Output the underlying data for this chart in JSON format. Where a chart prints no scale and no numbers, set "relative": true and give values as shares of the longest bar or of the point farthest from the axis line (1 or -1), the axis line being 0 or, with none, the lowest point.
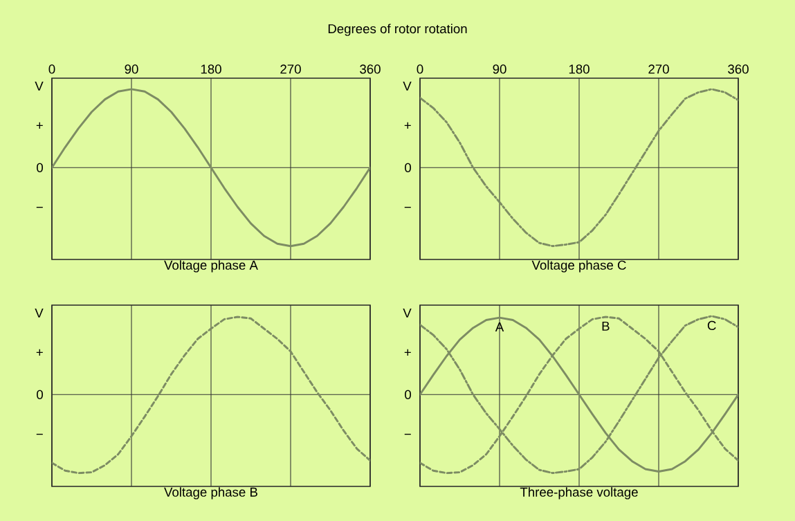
{
  "chart_data": [
    {
      "type": "line",
      "relative": true,
      "title": "Voltage phase A",
      "xlabel": "Degrees of rotor rotation",
      "annotations": [
        "V",
        "+",
        "0",
        "−"
      ],
      "x": [
        0,
        15,
        30,
        45,
        60,
        75,
        90,
        105,
        120,
        135,
        150,
        165,
        180,
        195,
        210,
        225,
        240,
        255,
        270,
        285,
        300,
        315,
        330,
        345,
        360
      ],
      "xlim": [
        0,
        360
      ],
      "xticks": [
        0,
        90,
        180,
        270,
        360
      ],
      "grid": "x",
      "ref_lines": [
        {
          "axis": "y",
          "value": 0
        }
      ],
      "series": [
        {
          "color": "#7d8c63",
          "line_style": "solid",
          "values": [
            0,
            0.26,
            0.5,
            0.71,
            0.87,
            0.97,
            1,
            0.97,
            0.87,
            0.71,
            0.5,
            0.26,
            0,
            -0.26,
            -0.5,
            -0.71,
            -0.87,
            -0.97,
            -1,
            -0.97,
            -0.87,
            -0.71,
            -0.5,
            -0.26,
            0
          ]
        }
      ]
    },
    {
      "type": "line",
      "relative": true,
      "title": "Voltage phase C",
      "annotations": [
        "V",
        "+",
        "0",
        "−"
      ],
      "x": [
        0,
        15,
        30,
        45,
        60,
        75,
        90,
        105,
        120,
        135,
        150,
        165,
        180,
        195,
        210,
        225,
        240,
        255,
        270,
        285,
        300,
        315,
        330,
        345,
        360
      ],
      "xlim": [
        0,
        360
      ],
      "xticks": [
        0,
        90,
        180,
        270,
        360
      ],
      "grid": "x",
      "ref_lines": [
        {
          "axis": "y",
          "value": 0
        }
      ],
      "series": [
        {
          "color": "#7d8c63",
          "line_style": "dashdot",
          "values": [
            0.89,
            0.76,
            0.58,
            0.32,
            0,
            -0.24,
            -0.44,
            -0.65,
            -0.83,
            -0.96,
            -1,
            -0.98,
            -0.95,
            -0.8,
            -0.6,
            -0.34,
            -0.07,
            0.2,
            0.47,
            0.68,
            0.88,
            0.96,
            1,
            0.96,
            0.86
          ]
        }
      ]
    },
    {
      "type": "line",
      "relative": true,
      "title": "Voltage phase B",
      "annotations": [
        "V",
        "+",
        "0",
        "−"
      ],
      "x": [
        0,
        15,
        30,
        45,
        60,
        75,
        90,
        105,
        120,
        135,
        150,
        165,
        180,
        195,
        210,
        225,
        240,
        255,
        270,
        285,
        300,
        315,
        330,
        345,
        360
      ],
      "xlim": [
        0,
        360
      ],
      "xticks": [
        0,
        90,
        180,
        270,
        360
      ],
      "grid": "x",
      "ref_lines": [
        {
          "axis": "y",
          "value": 0
        }
      ],
      "tick_labels": false,
      "series": [
        {
          "color": "#7d8c63",
          "line_style": "dashed",
          "values": [
            -0.87,
            -0.97,
            -1,
            -0.99,
            -0.9,
            -0.76,
            -0.53,
            -0.28,
            -0.02,
            0.26,
            0.5,
            0.71,
            0.84,
            0.96,
            0.99,
            0.97,
            0.84,
            0.71,
            0.55,
            0.29,
            0.03,
            -0.2,
            -0.46,
            -0.69,
            -0.84
          ]
        }
      ]
    },
    {
      "type": "line",
      "relative": true,
      "title": "Three-phase voltage",
      "annotations": [
        "V",
        "+",
        "0",
        "−"
      ],
      "x": [
        0,
        15,
        30,
        45,
        60,
        75,
        90,
        105,
        120,
        135,
        150,
        165,
        180,
        195,
        210,
        225,
        240,
        255,
        270,
        285,
        300,
        315,
        330,
        345,
        360
      ],
      "xlim": [
        0,
        360
      ],
      "xticks": [
        0,
        90,
        180,
        270,
        360
      ],
      "grid": "x",
      "ref_lines": [
        {
          "axis": "y",
          "value": 0
        }
      ],
      "tick_labels": false,
      "series": [
        {
          "name": "A",
          "color": "#7d8c63",
          "line_style": "solid",
          "values": [
            0,
            0.25,
            0.49,
            0.7,
            0.85,
            0.95,
            0.98,
            0.95,
            0.85,
            0.7,
            0.49,
            0.25,
            0,
            -0.25,
            -0.49,
            -0.7,
            -0.85,
            -0.95,
            -0.98,
            -0.95,
            -0.85,
            -0.7,
            -0.49,
            -0.25,
            0
          ]
        },
        {
          "name": "B",
          "color": "#7d8c63",
          "line_style": "dashed",
          "values": [
            -0.87,
            -0.97,
            -1,
            -0.99,
            -0.9,
            -0.76,
            -0.53,
            -0.28,
            -0.02,
            0.26,
            0.5,
            0.71,
            0.84,
            0.96,
            0.99,
            0.97,
            0.84,
            0.71,
            0.55,
            0.29,
            0.03,
            -0.2,
            -0.46,
            -0.69,
            -0.84
          ]
        },
        {
          "name": "C",
          "color": "#7d8c63",
          "line_style": "dashdot",
          "values": [
            0.89,
            0.76,
            0.58,
            0.32,
            0,
            -0.24,
            -0.44,
            -0.65,
            -0.83,
            -0.96,
            -1,
            -0.98,
            -0.95,
            -0.8,
            -0.6,
            -0.34,
            -0.07,
            0.2,
            0.47,
            0.68,
            0.88,
            0.96,
            1,
            0.96,
            0.86
          ]
        }
      ]
    }
  ]
}
